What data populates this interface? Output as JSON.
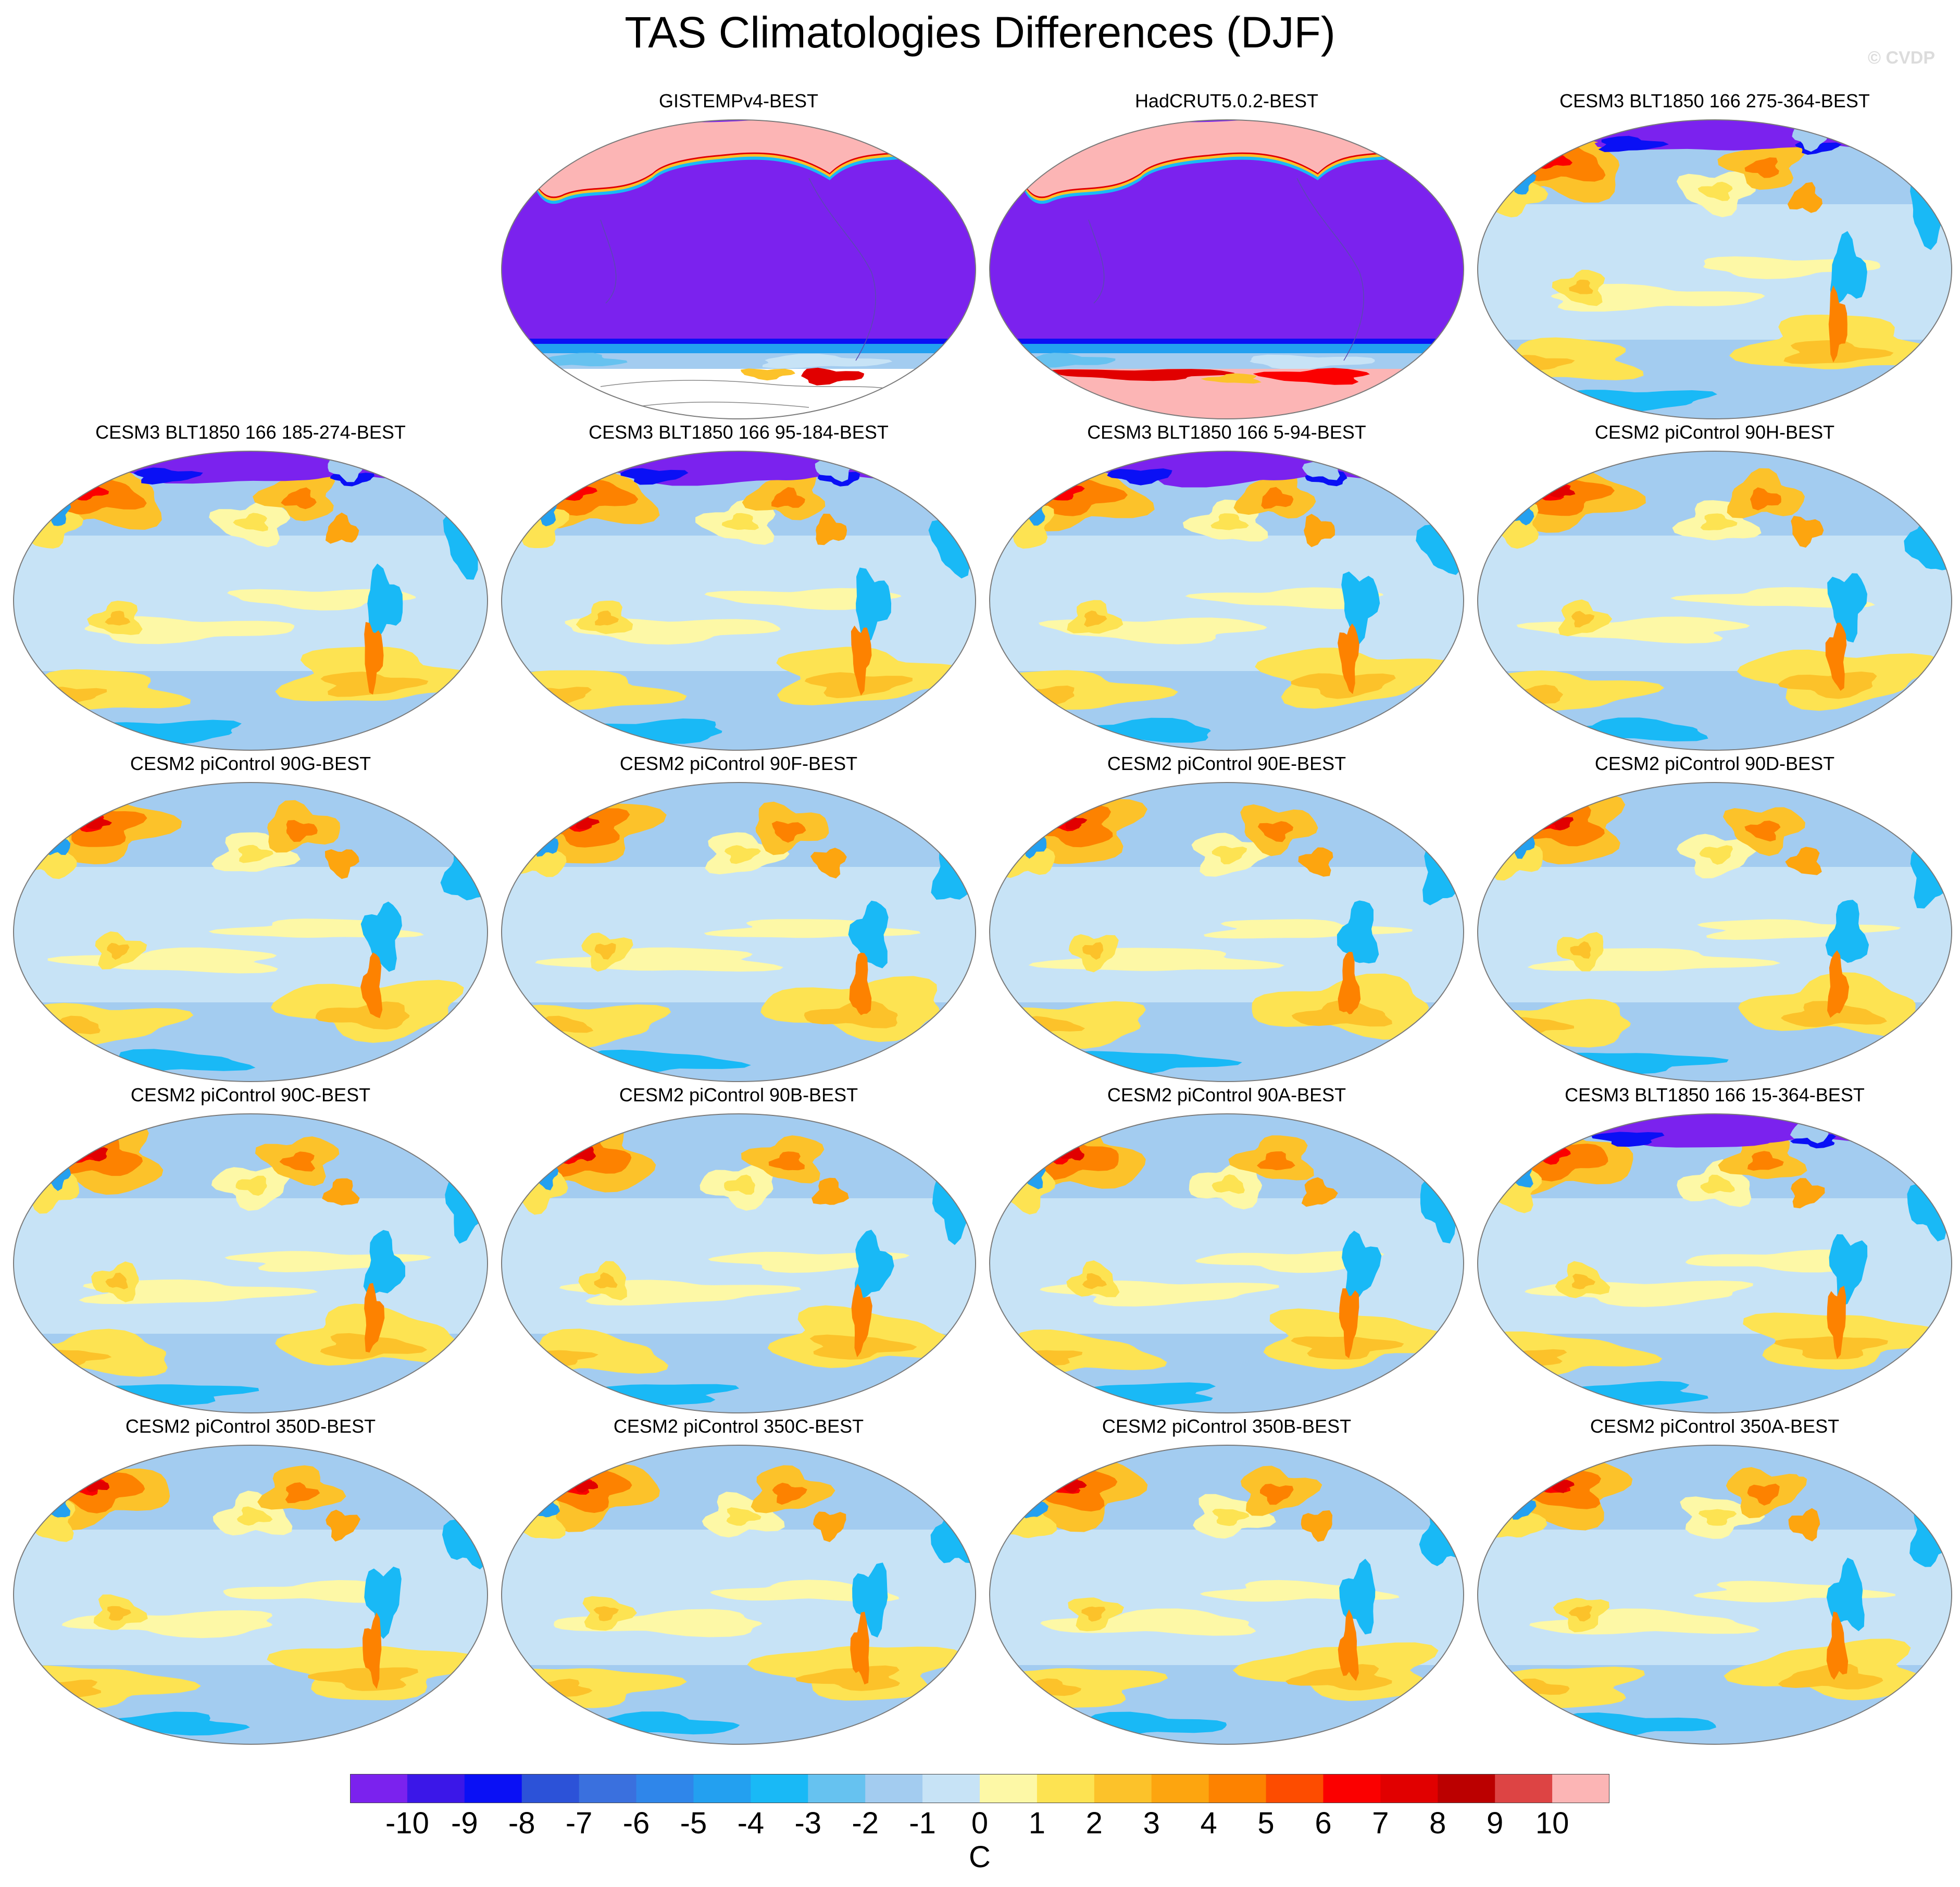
{
  "title": "TAS Climatologies Differences (DJF)",
  "watermark": "© CVDP",
  "colorbar": {
    "units": "C",
    "labels": [
      "-10",
      "-9",
      "-8",
      "-7",
      "-6",
      "-5",
      "-4",
      "-3",
      "-2",
      "-1",
      "0",
      "1",
      "2",
      "3",
      "4",
      "5",
      "6",
      "7",
      "8",
      "9",
      "10"
    ],
    "colors": [
      "#7b22ee",
      "#3b17e8",
      "#0a10f5",
      "#2c52d8",
      "#3a70de",
      "#2f86ea",
      "#23a0f0",
      "#19b9f6",
      "#66c2f0",
      "#a3ccf0",
      "#c7e3f6",
      "#fdf8a6",
      "#fde352",
      "#fcc22a",
      "#fda50f",
      "#fd8200",
      "#fd4c00",
      "#fb0000",
      "#e10000",
      "#bb0000",
      "#dd4444",
      "#fcb5b5"
    ]
  },
  "chart_data": {
    "type": "heatmap",
    "title": "TAS Climatologies Differences (DJF)",
    "variable": "TAS difference, DJF",
    "units": "C",
    "levels": [
      -10,
      -9,
      -8,
      -7,
      -6,
      -5,
      -4,
      -3,
      -2,
      -1,
      0,
      1,
      2,
      3,
      4,
      5,
      6,
      7,
      8,
      9,
      10
    ],
    "value_range": [
      -10,
      10
    ],
    "panels": [
      {
        "title": "GISTEMPv4-BEST",
        "style": "obs-gis"
      },
      {
        "title": "HadCRUT5.0.2-BEST",
        "style": "obs-had"
      },
      {
        "title": "CESM3 BLT1850 166 275-364-BEST",
        "style": "cesm3"
      },
      {
        "title": "CESM3 BLT1850 166 185-274-BEST",
        "style": "cesm3"
      },
      {
        "title": "CESM3 BLT1850 166 95-184-BEST",
        "style": "cesm3"
      },
      {
        "title": "CESM3 BLT1850 166 5-94-BEST",
        "style": "cesm3"
      },
      {
        "title": "CESM2 piControl 90H-BEST",
        "style": "cesm2"
      },
      {
        "title": "CESM2 piControl 90G-BEST",
        "style": "cesm2"
      },
      {
        "title": "CESM2 piControl 90F-BEST",
        "style": "cesm2"
      },
      {
        "title": "CESM2 piControl 90E-BEST",
        "style": "cesm2"
      },
      {
        "title": "CESM2 piControl 90D-BEST",
        "style": "cesm2"
      },
      {
        "title": "CESM2 piControl 90C-BEST",
        "style": "cesm2"
      },
      {
        "title": "CESM2 piControl 90B-BEST",
        "style": "cesm2"
      },
      {
        "title": "CESM2 piControl 90A-BEST",
        "style": "cesm2"
      },
      {
        "title": "CESM3 BLT1850 166 15-364-BEST",
        "style": "cesm3"
      },
      {
        "title": "CESM2 piControl 350D-BEST",
        "style": "cesm2"
      },
      {
        "title": "CESM2 piControl 350C-BEST",
        "style": "cesm2"
      },
      {
        "title": "CESM2 piControl 350B-BEST",
        "style": "cesm2"
      },
      {
        "title": "CESM2 piControl 350A-BEST",
        "style": "cesm2"
      }
    ]
  }
}
